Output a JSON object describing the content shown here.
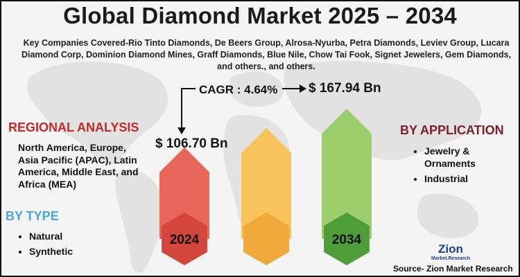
{
  "title": "Global Diamond Market 2025 – 2034",
  "companies": "Key Companies Covered-Rio Tinto Diamonds, De Beers Group, Alrosa-Nyurba, Petra Diamonds, Leviev Group, Lucara Diamond Corp, Dominion Diamond Mines, Graff Diamonds, Blue Nile, Chow Tai Fook, Signet Jewelers, Gem Diamonds, and others., and others.",
  "cagr_label": "CAGR : 4.64%",
  "regional": {
    "heading": "REGIONAL ANALYSIS",
    "text": "North America, Europe, Asia Pacific (APAC), Latin America, Middle East, and Africa (MEA)"
  },
  "by_type": {
    "heading": "BY TYPE",
    "items": [
      "Natural",
      "Synthetic"
    ]
  },
  "by_application": {
    "heading": "BY APPLICATION",
    "items": [
      "Jewelry & Ornaments",
      "Industrial"
    ]
  },
  "source": "Source- Zion Market Research",
  "logo": {
    "name": "Zion",
    "sub": "Market.Research"
  },
  "chart_data": {
    "type": "bar",
    "title": "Global Diamond Market 2025 – 2034",
    "unit": "USD Bn",
    "categories": [
      "2024",
      "",
      "2034"
    ],
    "values": [
      106.7,
      null,
      167.94
    ],
    "value_labels": [
      "$ 106.70 Bn",
      "",
      "$ 167.94 Bn"
    ],
    "cagr": 4.64,
    "colors": [
      "#e8665a",
      "#f8c35a",
      "#9ccf6c"
    ],
    "hex_colors": [
      "#d4463c",
      "#eea93a",
      "#4e9c3a"
    ]
  }
}
